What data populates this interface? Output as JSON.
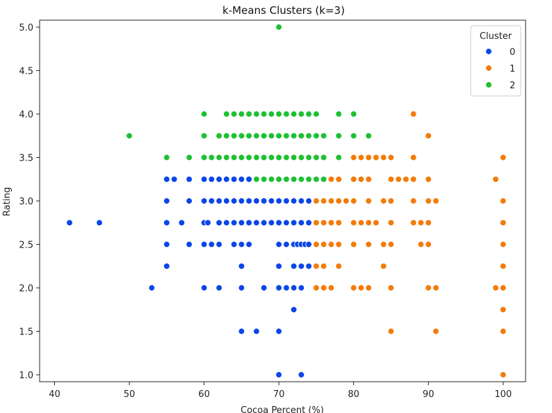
{
  "chart_data": {
    "type": "scatter",
    "title": "k-Means Clusters (k=3)",
    "xlabel": "Cocoa Percent (%)",
    "ylabel": "Rating",
    "xlim": [
      38,
      103
    ],
    "ylim": [
      0.92,
      5.08
    ],
    "xticks": [
      40,
      50,
      60,
      70,
      80,
      90,
      100
    ],
    "yticks": [
      1.0,
      1.5,
      2.0,
      2.5,
      3.0,
      3.5,
      4.0,
      4.5,
      5.0
    ],
    "grid": false,
    "legend": {
      "title": "Cluster",
      "placement": "top-right"
    },
    "series": [
      {
        "name": "0",
        "color": "#0a46e8",
        "points": [
          [
            42,
            2.75
          ],
          [
            46,
            2.75
          ],
          [
            53,
            2.0
          ],
          [
            55,
            3.25
          ],
          [
            55,
            3.0
          ],
          [
            55,
            2.75
          ],
          [
            55,
            2.5
          ],
          [
            55,
            2.25
          ],
          [
            56,
            3.25
          ],
          [
            57,
            2.75
          ],
          [
            58,
            3.25
          ],
          [
            58,
            3.0
          ],
          [
            58,
            2.5
          ],
          [
            60,
            3.25
          ],
          [
            61,
            3.25
          ],
          [
            62,
            3.25
          ],
          [
            63,
            3.25
          ],
          [
            64,
            3.25
          ],
          [
            65,
            3.25
          ],
          [
            66,
            3.25
          ],
          [
            60,
            3.0
          ],
          [
            61,
            3.0
          ],
          [
            62,
            3.0
          ],
          [
            63,
            3.0
          ],
          [
            64,
            3.0
          ],
          [
            65,
            3.0
          ],
          [
            66,
            3.0
          ],
          [
            67,
            3.0
          ],
          [
            68,
            3.0
          ],
          [
            69,
            3.0
          ],
          [
            70,
            3.0
          ],
          [
            71,
            3.0
          ],
          [
            72,
            3.0
          ],
          [
            73,
            3.0
          ],
          [
            74,
            3.0
          ],
          [
            60,
            2.75
          ],
          [
            60.5,
            2.75
          ],
          [
            62,
            2.75
          ],
          [
            63,
            2.75
          ],
          [
            64,
            2.75
          ],
          [
            65,
            2.75
          ],
          [
            66,
            2.75
          ],
          [
            67,
            2.75
          ],
          [
            68,
            2.75
          ],
          [
            69,
            2.75
          ],
          [
            70,
            2.75
          ],
          [
            71,
            2.75
          ],
          [
            72,
            2.75
          ],
          [
            73,
            2.75
          ],
          [
            74,
            2.75
          ],
          [
            60,
            2.5
          ],
          [
            61,
            2.5
          ],
          [
            62,
            2.5
          ],
          [
            64,
            2.5
          ],
          [
            65,
            2.5
          ],
          [
            66,
            2.5
          ],
          [
            70,
            2.5
          ],
          [
            71,
            2.5
          ],
          [
            72,
            2.5
          ],
          [
            72.5,
            2.5
          ],
          [
            73,
            2.5
          ],
          [
            73.5,
            2.5
          ],
          [
            74,
            2.5
          ],
          [
            65,
            2.25
          ],
          [
            70,
            2.25
          ],
          [
            72,
            2.25
          ],
          [
            73,
            2.25
          ],
          [
            74,
            2.25
          ],
          [
            60,
            2.0
          ],
          [
            62,
            2.0
          ],
          [
            65,
            2.0
          ],
          [
            68,
            2.0
          ],
          [
            70,
            2.0
          ],
          [
            71,
            2.0
          ],
          [
            72,
            2.0
          ],
          [
            73,
            2.0
          ],
          [
            72,
            1.75
          ],
          [
            65,
            1.5
          ],
          [
            67,
            1.5
          ],
          [
            70,
            1.5
          ],
          [
            70,
            1.0
          ],
          [
            73,
            1.0
          ]
        ]
      },
      {
        "name": "1",
        "color": "#f27b0a",
        "points": [
          [
            88,
            4.0
          ],
          [
            90,
            3.75
          ],
          [
            80,
            3.5
          ],
          [
            81,
            3.5
          ],
          [
            82,
            3.5
          ],
          [
            83,
            3.5
          ],
          [
            84,
            3.5
          ],
          [
            85,
            3.5
          ],
          [
            88,
            3.5
          ],
          [
            100,
            3.5
          ],
          [
            77,
            3.25
          ],
          [
            78,
            3.25
          ],
          [
            80,
            3.25
          ],
          [
            81,
            3.25
          ],
          [
            82,
            3.25
          ],
          [
            85,
            3.25
          ],
          [
            86,
            3.25
          ],
          [
            87,
            3.25
          ],
          [
            88,
            3.25
          ],
          [
            90,
            3.25
          ],
          [
            99,
            3.25
          ],
          [
            75,
            3.0
          ],
          [
            76,
            3.0
          ],
          [
            77,
            3.0
          ],
          [
            78,
            3.0
          ],
          [
            79,
            3.0
          ],
          [
            80,
            3.0
          ],
          [
            82,
            3.0
          ],
          [
            84,
            3.0
          ],
          [
            85,
            3.0
          ],
          [
            88,
            3.0
          ],
          [
            90,
            3.0
          ],
          [
            91,
            3.0
          ],
          [
            100,
            3.0
          ],
          [
            75,
            2.75
          ],
          [
            76,
            2.75
          ],
          [
            77,
            2.75
          ],
          [
            78,
            2.75
          ],
          [
            80,
            2.75
          ],
          [
            81,
            2.75
          ],
          [
            82,
            2.75
          ],
          [
            83,
            2.75
          ],
          [
            85,
            2.75
          ],
          [
            88,
            2.75
          ],
          [
            89,
            2.75
          ],
          [
            90,
            2.75
          ],
          [
            100,
            2.75
          ],
          [
            75,
            2.5
          ],
          [
            76,
            2.5
          ],
          [
            77,
            2.5
          ],
          [
            78,
            2.5
          ],
          [
            80,
            2.5
          ],
          [
            82,
            2.5
          ],
          [
            84,
            2.5
          ],
          [
            85,
            2.5
          ],
          [
            89,
            2.5
          ],
          [
            90,
            2.5
          ],
          [
            100,
            2.5
          ],
          [
            75,
            2.25
          ],
          [
            76,
            2.25
          ],
          [
            78,
            2.25
          ],
          [
            84,
            2.25
          ],
          [
            100,
            2.25
          ],
          [
            75,
            2.0
          ],
          [
            76,
            2.0
          ],
          [
            77,
            2.0
          ],
          [
            80,
            2.0
          ],
          [
            81,
            2.0
          ],
          [
            82,
            2.0
          ],
          [
            85,
            2.0
          ],
          [
            90,
            2.0
          ],
          [
            91,
            2.0
          ],
          [
            99,
            2.0
          ],
          [
            100,
            2.0
          ],
          [
            100,
            1.75
          ],
          [
            85,
            1.5
          ],
          [
            91,
            1.5
          ],
          [
            100,
            1.5
          ],
          [
            100,
            1.0
          ]
        ]
      },
      {
        "name": "2",
        "color": "#1ec032",
        "points": [
          [
            70,
            5.0
          ],
          [
            60,
            4.0
          ],
          [
            63,
            4.0
          ],
          [
            64,
            4.0
          ],
          [
            65,
            4.0
          ],
          [
            66,
            4.0
          ],
          [
            67,
            4.0
          ],
          [
            68,
            4.0
          ],
          [
            69,
            4.0
          ],
          [
            70,
            4.0
          ],
          [
            71,
            4.0
          ],
          [
            72,
            4.0
          ],
          [
            73,
            4.0
          ],
          [
            74,
            4.0
          ],
          [
            75,
            4.0
          ],
          [
            78,
            4.0
          ],
          [
            80,
            4.0
          ],
          [
            50,
            3.75
          ],
          [
            60,
            3.75
          ],
          [
            62,
            3.75
          ],
          [
            63,
            3.75
          ],
          [
            64,
            3.75
          ],
          [
            65,
            3.75
          ],
          [
            66,
            3.75
          ],
          [
            67,
            3.75
          ],
          [
            68,
            3.75
          ],
          [
            69,
            3.75
          ],
          [
            70,
            3.75
          ],
          [
            71,
            3.75
          ],
          [
            72,
            3.75
          ],
          [
            73,
            3.75
          ],
          [
            74,
            3.75
          ],
          [
            75,
            3.75
          ],
          [
            76,
            3.75
          ],
          [
            78,
            3.75
          ],
          [
            80,
            3.75
          ],
          [
            82,
            3.75
          ],
          [
            55,
            3.5
          ],
          [
            58,
            3.5
          ],
          [
            60,
            3.5
          ],
          [
            61,
            3.5
          ],
          [
            62,
            3.5
          ],
          [
            63,
            3.5
          ],
          [
            64,
            3.5
          ],
          [
            65,
            3.5
          ],
          [
            66,
            3.5
          ],
          [
            67,
            3.5
          ],
          [
            68,
            3.5
          ],
          [
            69,
            3.5
          ],
          [
            70,
            3.5
          ],
          [
            71,
            3.5
          ],
          [
            72,
            3.5
          ],
          [
            73,
            3.5
          ],
          [
            74,
            3.5
          ],
          [
            75,
            3.5
          ],
          [
            76,
            3.5
          ],
          [
            78,
            3.5
          ],
          [
            67,
            3.25
          ],
          [
            68,
            3.25
          ],
          [
            69,
            3.25
          ],
          [
            70,
            3.25
          ],
          [
            71,
            3.25
          ],
          [
            72,
            3.25
          ],
          [
            73,
            3.25
          ],
          [
            74,
            3.25
          ],
          [
            75,
            3.25
          ],
          [
            76,
            3.25
          ]
        ]
      }
    ]
  }
}
